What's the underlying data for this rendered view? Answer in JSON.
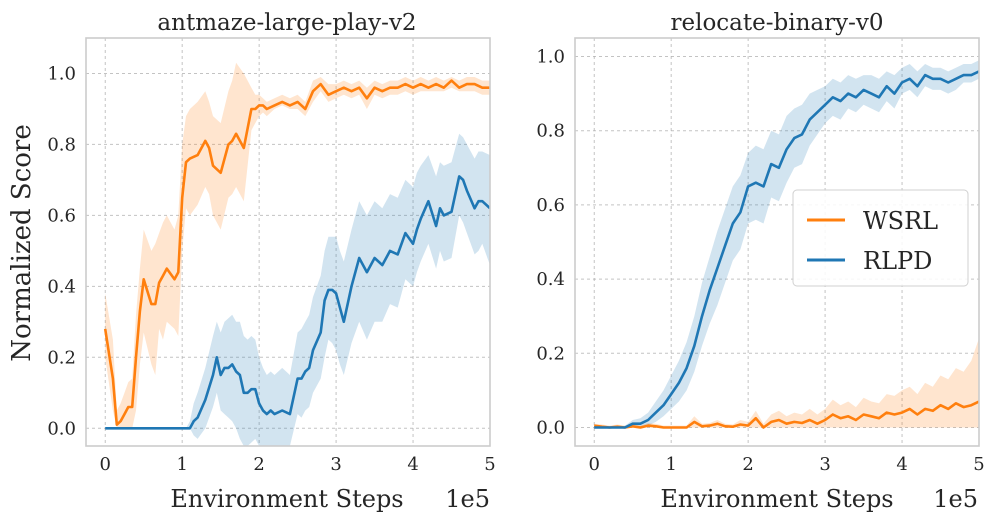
{
  "figure": {
    "ylabel": "Normalized Score"
  },
  "colors": {
    "WSRL": "#ff7f0e",
    "RLPD": "#1f77b4"
  },
  "chart_data": [
    {
      "type": "line",
      "title": "antmaze-large-play-v2",
      "xlabel": "Environment Steps",
      "x_offset_label": "1e5",
      "ylabel": "Normalized Score",
      "xlim": [
        -0.25,
        5
      ],
      "ylim": [
        -0.05,
        1.1
      ],
      "xticks": [
        0,
        1,
        2,
        3,
        4,
        5
      ],
      "xtick_labels": [
        "0",
        "1",
        "2",
        "3",
        "4",
        "5"
      ],
      "yticks": [
        0.0,
        0.2,
        0.4,
        0.6,
        0.8,
        1.0
      ],
      "ytick_labels": [
        "0.0",
        "0.2",
        "0.4",
        "0.6",
        "0.8",
        "1.0"
      ],
      "grid": true,
      "series": [
        {
          "name": "WSRL",
          "x": [
            0,
            0.1,
            0.15,
            0.2,
            0.25,
            0.3,
            0.35,
            0.4,
            0.45,
            0.5,
            0.6,
            0.65,
            0.7,
            0.75,
            0.8,
            0.9,
            0.95,
            1.0,
            1.05,
            1.1,
            1.2,
            1.3,
            1.35,
            1.4,
            1.5,
            1.6,
            1.65,
            1.7,
            1.8,
            1.9,
            1.95,
            2.0,
            2.05,
            2.1,
            2.2,
            2.3,
            2.4,
            2.5,
            2.6,
            2.7,
            2.8,
            2.9,
            3.0,
            3.1,
            3.2,
            3.3,
            3.4,
            3.5,
            3.6,
            3.7,
            3.8,
            3.9,
            4.0,
            4.1,
            4.2,
            4.3,
            4.4,
            4.5,
            4.6,
            4.7,
            4.8,
            4.9,
            5.0
          ],
          "values": [
            0.28,
            0.14,
            0.01,
            0.02,
            0.04,
            0.06,
            0.06,
            0.2,
            0.33,
            0.42,
            0.35,
            0.35,
            0.41,
            0.43,
            0.45,
            0.42,
            0.44,
            0.65,
            0.75,
            0.76,
            0.77,
            0.81,
            0.79,
            0.74,
            0.72,
            0.8,
            0.81,
            0.83,
            0.79,
            0.9,
            0.9,
            0.91,
            0.91,
            0.9,
            0.91,
            0.92,
            0.91,
            0.92,
            0.9,
            0.95,
            0.97,
            0.94,
            0.95,
            0.96,
            0.95,
            0.96,
            0.93,
            0.96,
            0.95,
            0.96,
            0.96,
            0.97,
            0.96,
            0.97,
            0.96,
            0.97,
            0.96,
            0.98,
            0.96,
            0.97,
            0.97,
            0.96,
            0.96
          ],
          "lower": [
            0.2,
            0.05,
            0.0,
            0.0,
            0.0,
            0.0,
            0.0,
            0.05,
            0.18,
            0.27,
            0.18,
            0.15,
            0.28,
            0.25,
            0.3,
            0.28,
            0.26,
            0.5,
            0.62,
            0.6,
            0.63,
            0.68,
            0.66,
            0.6,
            0.56,
            0.65,
            0.66,
            0.68,
            0.64,
            0.84,
            0.86,
            0.88,
            0.89,
            0.88,
            0.9,
            0.91,
            0.9,
            0.9,
            0.88,
            0.92,
            0.95,
            0.92,
            0.93,
            0.94,
            0.93,
            0.94,
            0.9,
            0.94,
            0.93,
            0.94,
            0.94,
            0.95,
            0.94,
            0.95,
            0.95,
            0.95,
            0.95,
            0.96,
            0.95,
            0.95,
            0.95,
            0.94,
            0.94
          ],
          "upper": [
            0.38,
            0.25,
            0.05,
            0.07,
            0.1,
            0.13,
            0.14,
            0.32,
            0.45,
            0.56,
            0.5,
            0.52,
            0.55,
            0.58,
            0.6,
            0.56,
            0.6,
            0.8,
            0.88,
            0.9,
            0.92,
            0.95,
            0.92,
            0.88,
            0.86,
            0.95,
            0.98,
            1.03,
            1.0,
            0.96,
            0.94,
            0.94,
            0.93,
            0.92,
            0.93,
            0.94,
            0.93,
            0.94,
            0.92,
            0.98,
            0.99,
            0.97,
            0.97,
            0.98,
            0.97,
            0.98,
            0.96,
            0.98,
            0.97,
            0.98,
            0.98,
            0.99,
            0.98,
            0.99,
            0.98,
            0.99,
            0.98,
            0.99,
            0.98,
            0.99,
            0.99,
            0.98,
            0.98
          ]
        },
        {
          "name": "RLPD",
          "x": [
            0,
            0.5,
            1.0,
            1.05,
            1.1,
            1.15,
            1.2,
            1.3,
            1.4,
            1.45,
            1.5,
            1.55,
            1.6,
            1.65,
            1.7,
            1.75,
            1.8,
            1.85,
            1.9,
            1.95,
            2.0,
            2.05,
            2.1,
            2.15,
            2.2,
            2.3,
            2.4,
            2.5,
            2.55,
            2.6,
            2.65,
            2.7,
            2.8,
            2.85,
            2.9,
            2.95,
            3.0,
            3.05,
            3.1,
            3.2,
            3.3,
            3.4,
            3.5,
            3.6,
            3.7,
            3.8,
            3.9,
            4.0,
            4.05,
            4.1,
            4.2,
            4.3,
            4.35,
            4.4,
            4.5,
            4.6,
            4.65,
            4.7,
            4.8,
            4.85,
            4.9,
            5.0
          ],
          "values": [
            0.0,
            0.0,
            0.0,
            0.0,
            0.0,
            0.02,
            0.03,
            0.08,
            0.15,
            0.2,
            0.15,
            0.17,
            0.17,
            0.18,
            0.16,
            0.15,
            0.1,
            0.1,
            0.11,
            0.11,
            0.07,
            0.05,
            0.04,
            0.05,
            0.04,
            0.05,
            0.04,
            0.14,
            0.14,
            0.16,
            0.17,
            0.22,
            0.27,
            0.36,
            0.39,
            0.39,
            0.38,
            0.34,
            0.3,
            0.4,
            0.48,
            0.44,
            0.48,
            0.46,
            0.5,
            0.49,
            0.55,
            0.52,
            0.56,
            0.59,
            0.64,
            0.57,
            0.62,
            0.6,
            0.61,
            0.71,
            0.7,
            0.67,
            0.62,
            0.64,
            0.64,
            0.62
          ],
          "lower": [
            0.0,
            0.0,
            0.0,
            0.0,
            0.0,
            -0.02,
            -0.03,
            0.0,
            0.06,
            0.1,
            0.05,
            0.04,
            0.03,
            0.02,
            0.0,
            -0.03,
            -0.05,
            -0.05,
            -0.04,
            -0.03,
            -0.05,
            -0.05,
            -0.05,
            -0.05,
            -0.05,
            -0.05,
            -0.05,
            0.04,
            0.03,
            0.05,
            0.06,
            0.1,
            0.14,
            0.2,
            0.25,
            0.24,
            0.22,
            0.18,
            0.15,
            0.24,
            0.3,
            0.25,
            0.3,
            0.3,
            0.35,
            0.34,
            0.42,
            0.4,
            0.44,
            0.47,
            0.52,
            0.45,
            0.5,
            0.47,
            0.48,
            0.6,
            0.58,
            0.55,
            0.49,
            0.5,
            0.52,
            0.46
          ],
          "upper": [
            0.0,
            0.0,
            0.0,
            0.0,
            0.02,
            0.07,
            0.1,
            0.17,
            0.26,
            0.3,
            0.27,
            0.3,
            0.31,
            0.32,
            0.3,
            0.3,
            0.26,
            0.25,
            0.26,
            0.25,
            0.2,
            0.17,
            0.15,
            0.16,
            0.15,
            0.17,
            0.15,
            0.27,
            0.28,
            0.3,
            0.32,
            0.37,
            0.43,
            0.5,
            0.54,
            0.54,
            0.54,
            0.5,
            0.47,
            0.56,
            0.64,
            0.6,
            0.64,
            0.62,
            0.66,
            0.65,
            0.7,
            0.68,
            0.72,
            0.74,
            0.77,
            0.71,
            0.75,
            0.74,
            0.75,
            0.83,
            0.82,
            0.8,
            0.76,
            0.78,
            0.78,
            0.77
          ]
        }
      ]
    },
    {
      "type": "line",
      "title": "relocate-binary-v0",
      "xlabel": "Environment Steps",
      "x_offset_label": "1e5",
      "ylabel": "",
      "xlim": [
        -0.25,
        5
      ],
      "ylim": [
        -0.05,
        1.05
      ],
      "xticks": [
        0,
        1,
        2,
        3,
        4,
        5
      ],
      "xtick_labels": [
        "0",
        "1",
        "2",
        "3",
        "4",
        "5"
      ],
      "yticks": [
        0.0,
        0.2,
        0.4,
        0.6,
        0.8,
        1.0
      ],
      "ytick_labels": [
        "0.0",
        "0.2",
        "0.4",
        "0.6",
        "0.8",
        "1.0"
      ],
      "grid": true,
      "legend": {
        "placement": "center-right",
        "entries": [
          "WSRL",
          "RLPD"
        ]
      },
      "series": [
        {
          "name": "WSRL",
          "x": [
            0,
            0.1,
            0.2,
            0.3,
            0.4,
            0.5,
            0.6,
            0.7,
            0.8,
            0.9,
            1.0,
            1.1,
            1.2,
            1.3,
            1.4,
            1.5,
            1.6,
            1.7,
            1.8,
            1.9,
            2.0,
            2.1,
            2.2,
            2.3,
            2.4,
            2.5,
            2.6,
            2.7,
            2.8,
            2.9,
            3.0,
            3.1,
            3.2,
            3.3,
            3.4,
            3.5,
            3.6,
            3.7,
            3.8,
            3.9,
            4.0,
            4.1,
            4.2,
            4.3,
            4.4,
            4.5,
            4.6,
            4.7,
            4.8,
            4.9,
            5.0
          ],
          "values": [
            0.005,
            0.002,
            0.0,
            0.002,
            0.0,
            0.003,
            0.0,
            0.005,
            0.003,
            0.0,
            0.0,
            0.0,
            0.0,
            0.015,
            0.003,
            0.005,
            0.01,
            0.003,
            0.002,
            0.008,
            0.005,
            0.025,
            0.0,
            0.015,
            0.02,
            0.01,
            0.015,
            0.012,
            0.02,
            0.01,
            0.02,
            0.035,
            0.025,
            0.03,
            0.02,
            0.035,
            0.03,
            0.025,
            0.04,
            0.035,
            0.04,
            0.05,
            0.035,
            0.05,
            0.045,
            0.06,
            0.05,
            0.065,
            0.055,
            0.06,
            0.07
          ],
          "lower": [
            0.0,
            0.0,
            0.0,
            0.0,
            0.0,
            0.0,
            0.0,
            0.0,
            0.0,
            0.0,
            0.0,
            0.0,
            0.0,
            0.0,
            0.0,
            0.0,
            0.0,
            0.0,
            0.0,
            0.0,
            0.0,
            0.0,
            0.0,
            0.0,
            0.0,
            0.0,
            0.0,
            0.0,
            0.0,
            0.0,
            0.0,
            0.0,
            0.0,
            0.0,
            0.0,
            0.0,
            0.0,
            0.0,
            0.0,
            0.0,
            0.0,
            0.0,
            0.0,
            0.0,
            0.0,
            0.0,
            0.0,
            0.0,
            0.0,
            0.0,
            0.0
          ],
          "upper": [
            0.01,
            0.008,
            0.005,
            0.008,
            0.005,
            0.01,
            0.005,
            0.012,
            0.01,
            0.005,
            0.005,
            0.005,
            0.005,
            0.03,
            0.01,
            0.012,
            0.02,
            0.01,
            0.008,
            0.02,
            0.015,
            0.045,
            0.01,
            0.035,
            0.045,
            0.03,
            0.04,
            0.035,
            0.05,
            0.035,
            0.05,
            0.075,
            0.06,
            0.07,
            0.055,
            0.08,
            0.07,
            0.065,
            0.09,
            0.085,
            0.1,
            0.11,
            0.09,
            0.12,
            0.11,
            0.14,
            0.13,
            0.16,
            0.15,
            0.18,
            0.24
          ]
        },
        {
          "name": "RLPD",
          "x": [
            0,
            0.1,
            0.2,
            0.3,
            0.4,
            0.5,
            0.6,
            0.7,
            0.8,
            0.9,
            1.0,
            1.1,
            1.2,
            1.3,
            1.4,
            1.5,
            1.6,
            1.7,
            1.8,
            1.9,
            2.0,
            2.1,
            2.2,
            2.3,
            2.4,
            2.5,
            2.6,
            2.7,
            2.8,
            2.9,
            3.0,
            3.1,
            3.2,
            3.3,
            3.4,
            3.5,
            3.6,
            3.7,
            3.8,
            3.9,
            4.0,
            4.1,
            4.2,
            4.3,
            4.4,
            4.5,
            4.6,
            4.7,
            4.8,
            4.9,
            5.0
          ],
          "values": [
            0.0,
            0.0,
            0.0,
            0.0,
            0.0,
            0.01,
            0.01,
            0.02,
            0.04,
            0.06,
            0.09,
            0.12,
            0.16,
            0.22,
            0.3,
            0.37,
            0.43,
            0.49,
            0.55,
            0.58,
            0.65,
            0.66,
            0.65,
            0.71,
            0.7,
            0.75,
            0.78,
            0.79,
            0.83,
            0.85,
            0.87,
            0.89,
            0.88,
            0.9,
            0.89,
            0.91,
            0.9,
            0.89,
            0.92,
            0.9,
            0.93,
            0.94,
            0.92,
            0.95,
            0.94,
            0.94,
            0.93,
            0.94,
            0.95,
            0.95,
            0.96
          ],
          "lower": [
            0.0,
            0.0,
            0.0,
            0.0,
            0.0,
            0.0,
            0.0,
            0.005,
            0.015,
            0.03,
            0.05,
            0.07,
            0.1,
            0.15,
            0.22,
            0.28,
            0.33,
            0.39,
            0.45,
            0.48,
            0.55,
            0.56,
            0.55,
            0.62,
            0.61,
            0.66,
            0.7,
            0.71,
            0.76,
            0.79,
            0.82,
            0.84,
            0.83,
            0.86,
            0.85,
            0.87,
            0.86,
            0.85,
            0.88,
            0.86,
            0.9,
            0.91,
            0.89,
            0.92,
            0.91,
            0.91,
            0.9,
            0.91,
            0.93,
            0.93,
            0.94
          ],
          "upper": [
            0.0,
            0.0,
            0.0,
            0.0,
            0.005,
            0.02,
            0.025,
            0.04,
            0.07,
            0.1,
            0.14,
            0.18,
            0.23,
            0.3,
            0.39,
            0.46,
            0.53,
            0.59,
            0.65,
            0.68,
            0.74,
            0.76,
            0.75,
            0.8,
            0.79,
            0.84,
            0.86,
            0.87,
            0.9,
            0.91,
            0.92,
            0.94,
            0.93,
            0.95,
            0.94,
            0.95,
            0.95,
            0.94,
            0.96,
            0.95,
            0.97,
            0.98,
            0.96,
            0.98,
            0.97,
            0.97,
            0.96,
            0.97,
            0.98,
            0.98,
            0.99
          ]
        }
      ]
    }
  ]
}
